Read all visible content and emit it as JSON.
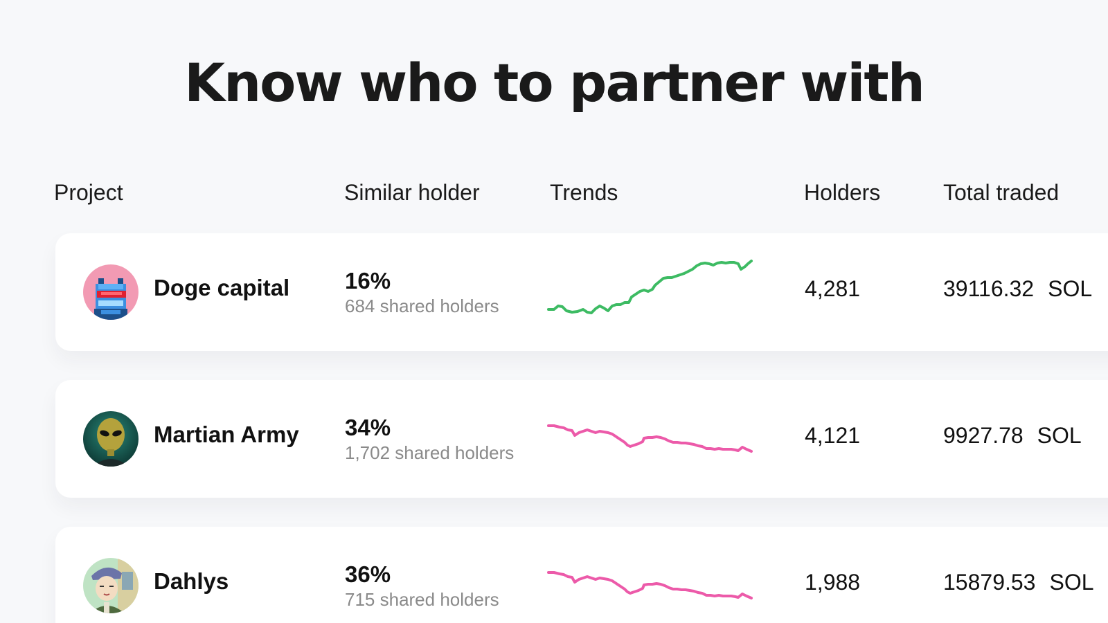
{
  "headline": "Know who to partner with",
  "columns": {
    "project": "Project",
    "similar_holder": "Similar holder",
    "trends": "Trends",
    "holders": "Holders",
    "total_traded": "Total traded"
  },
  "colors": {
    "trend_up": "#3dbb63",
    "trend_down": "#ec5aa9",
    "background": "#f7f8fa",
    "card": "#ffffff"
  },
  "rows": [
    {
      "name": "Doge capital",
      "avatar_icon": "doge-capital-avatar-icon",
      "similar_pct": "16%",
      "shared": "684 shared holders",
      "trend_direction": "up",
      "holders": "4,281",
      "traded_value": "39116.32",
      "traded_unit": "SOL"
    },
    {
      "name": "Martian Army",
      "avatar_icon": "martian-army-avatar-icon",
      "similar_pct": "34%",
      "shared": "1,702 shared holders",
      "trend_direction": "down",
      "holders": "4,121",
      "traded_value": "9927.78",
      "traded_unit": "SOL"
    },
    {
      "name": "Dahlys",
      "avatar_icon": "dahlys-avatar-icon",
      "similar_pct": "36%",
      "shared": "715 shared holders",
      "trend_direction": "down",
      "holders": "1,988",
      "traded_value": "15879.53",
      "traded_unit": "SOL"
    }
  ]
}
